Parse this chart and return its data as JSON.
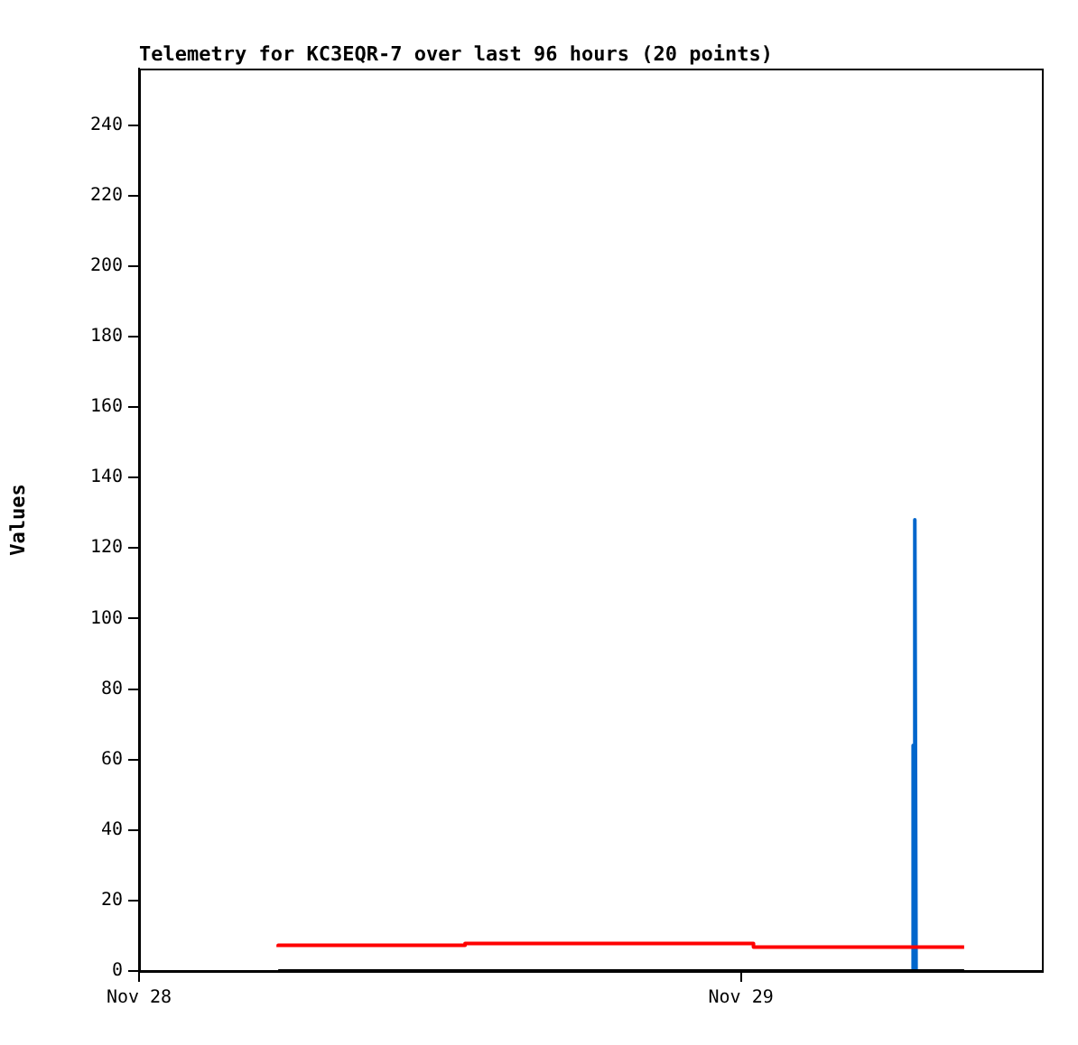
{
  "chart_data": {
    "type": "line",
    "title": "Telemetry for KC3EQR-7 over last 96 hours (20 points)",
    "ylabel": "Values",
    "xlim": [
      "--11-28T00:00",
      "--11-29T12:00"
    ],
    "xticks": [
      {
        "value": "--11-28T00:00",
        "label": "Nov 28"
      },
      {
        "value": "--11-29T00:00",
        "label": "Nov 29"
      }
    ],
    "ylim": [
      0,
      256
    ],
    "yticks": [
      0,
      20,
      40,
      60,
      80,
      100,
      120,
      140,
      160,
      180,
      200,
      220,
      240
    ],
    "grid": false,
    "legend": false,
    "marker": "none",
    "series": [
      {
        "type": "step",
        "color": "#ff0000",
        "x": [
          "--11-28T05:33",
          "--11-28T13:00",
          "--11-29T00:30",
          "--11-29T06:54",
          "--11-29T08:54"
        ],
        "values": [
          6.8,
          7.3,
          7.8,
          6.8,
          6.8
        ]
      },
      {
        "type": "line",
        "color": "#000000",
        "x": [
          "--11-28T05:33",
          "--11-29T08:54"
        ],
        "values": [
          0,
          0
        ]
      },
      {
        "type": "line",
        "color": "#0066cc",
        "x": [
          "--11-29T06:49",
          "--11-29T06:52",
          "--11-29T06:54",
          "--11-29T06:56",
          "--11-29T06:59"
        ],
        "values": [
          0,
          64,
          0,
          128,
          0
        ]
      }
    ]
  }
}
